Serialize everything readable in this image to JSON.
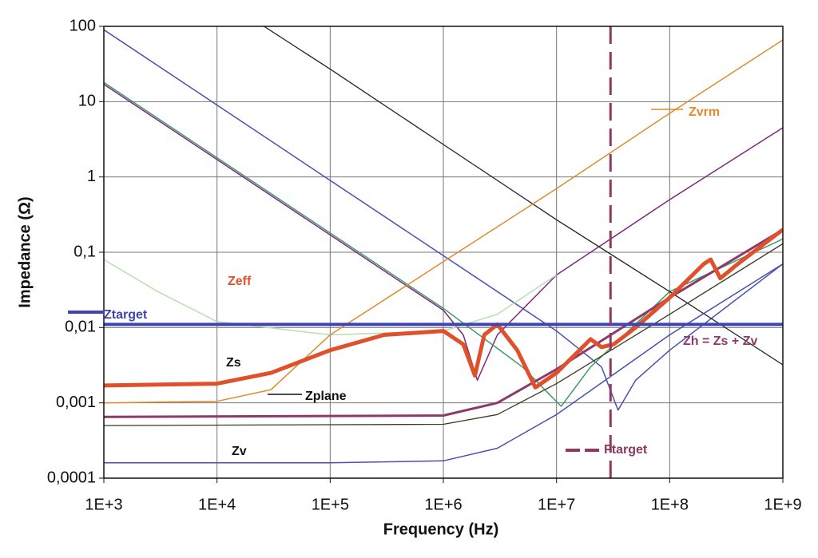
{
  "chart_data": {
    "type": "line",
    "log_x": true,
    "log_y": true,
    "grid": true,
    "xlabel": "Frequency (Hz)",
    "ylabel": "Impedance (Ω)",
    "xlim": [
      1000,
      1000000000
    ],
    "ylim": [
      0.0001,
      100
    ],
    "xticks": [
      {
        "value": 1000,
        "label": "1E+3"
      },
      {
        "value": 10000,
        "label": "1E+4"
      },
      {
        "value": 100000,
        "label": "1E+5"
      },
      {
        "value": 1000000,
        "label": "1E+6"
      },
      {
        "value": 10000000,
        "label": "1E+7"
      },
      {
        "value": 100000000,
        "label": "1E+8"
      },
      {
        "value": 1000000000,
        "label": "1E+9"
      }
    ],
    "yticks": [
      {
        "value": 0.0001,
        "label": "0,0001"
      },
      {
        "value": 0.001,
        "label": "0,001"
      },
      {
        "value": 0.01,
        "label": "0,01"
      },
      {
        "value": 0.1,
        "label": "0,1"
      },
      1,
      10,
      100
    ],
    "annotations": [
      "Zs"
    ],
    "vline": {
      "name": "Ftarget",
      "x": 30000000,
      "color": "#8b3a62"
    },
    "series": [
      {
        "color": "#4b4fb0",
        "x": [
          1000,
          10000,
          100000,
          1000000,
          10000000,
          25000000,
          35000000,
          50000000,
          100000000,
          1000000000
        ],
        "values": [
          90,
          9,
          0.9,
          0.09,
          0.009,
          0.003,
          0.0008,
          0.002,
          0.005,
          0.07
        ]
      },
      {
        "color": "#7b2a7b",
        "x": [
          1000,
          10000,
          100000,
          1000000,
          1500000,
          2000000,
          3000000,
          10000000,
          100000000,
          1000000000
        ],
        "values": [
          17,
          1.7,
          0.17,
          0.017,
          0.008,
          0.002,
          0.008,
          0.05,
          0.5,
          4.5
        ]
      },
      {
        "color": "#3f9a6a",
        "x": [
          1000,
          10000,
          100000,
          1000000,
          5000000,
          11000000,
          20000000,
          100000000,
          1000000000
        ],
        "values": [
          18,
          1.8,
          0.18,
          0.018,
          0.003,
          0.0009,
          0.003,
          0.03,
          0.15
        ]
      },
      {
        "color": "#b9dfb0",
        "x": [
          1000,
          3000,
          10000,
          100000,
          1000000,
          3000000,
          10000000
        ],
        "values": [
          0.08,
          0.03,
          0.012,
          0.008,
          0.009,
          0.015,
          0.05
        ]
      },
      {
        "color": "#222222",
        "x": [
          26000,
          100000,
          1000000,
          10000000,
          100000000,
          1000000000
        ],
        "values": [
          100,
          27,
          2.7,
          0.27,
          0.03,
          0.0032
        ]
      },
      {
        "name": "Zvrm",
        "color": "#e08a2a",
        "x": [
          1000,
          10000,
          30000,
          100000,
          1000000,
          10000000,
          100000000,
          1000000000
        ],
        "values": [
          0.001,
          0.00105,
          0.0015,
          0.008,
          0.075,
          0.7,
          7,
          66
        ]
      },
      {
        "name": "Zv",
        "color": "#4b4fb0",
        "x": [
          1000,
          100000,
          1000000,
          3000000,
          10000000,
          100000000,
          1000000000
        ],
        "values": [
          0.00016,
          0.00016,
          0.00017,
          0.00025,
          0.0007,
          0.008,
          0.07
        ]
      },
      {
        "name": "Zplane",
        "color": "#3a3a20",
        "x": [
          1000,
          1000000,
          3000000,
          10000000,
          100000000,
          1000000000
        ],
        "values": [
          0.0005,
          0.00052,
          0.0007,
          0.0018,
          0.015,
          0.13
        ]
      },
      {
        "name": "Zh = Zs + Zv",
        "color": "#8b3a6a",
        "x": [
          1000,
          1000000,
          3000000,
          10000000,
          100000000,
          1000000000
        ],
        "values": [
          0.00065,
          0.00068,
          0.001,
          0.0028,
          0.025,
          0.2
        ]
      },
      {
        "name": "Zeff",
        "color": "#e0502a",
        "x": [
          1000,
          10000,
          30000,
          100000,
          300000,
          1000000,
          1500000,
          1900000,
          2300000,
          3000000,
          4500000,
          6500000,
          10000000,
          20000000,
          25000000,
          32000000,
          50000000,
          100000000,
          200000000,
          230000000,
          280000000,
          400000000,
          1000000000
        ],
        "values": [
          0.0017,
          0.0018,
          0.0025,
          0.005,
          0.008,
          0.009,
          0.006,
          0.0023,
          0.008,
          0.011,
          0.005,
          0.0016,
          0.0025,
          0.007,
          0.0055,
          0.006,
          0.01,
          0.025,
          0.07,
          0.08,
          0.045,
          0.07,
          0.2
        ]
      },
      {
        "name": "Ztarget",
        "color": "#3f45b0",
        "x": [
          1000,
          1000000000
        ],
        "values": [
          0.011,
          0.011
        ]
      }
    ]
  }
}
